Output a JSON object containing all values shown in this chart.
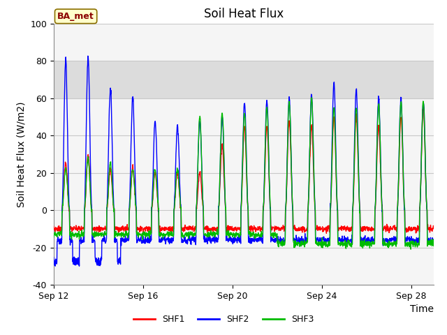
{
  "title": "Soil Heat Flux",
  "xlabel": "Time",
  "ylabel": "Soil Heat Flux (W/m2)",
  "ylim": [
    -40,
    100
  ],
  "xlim": [
    0,
    17
  ],
  "xtick_positions": [
    0,
    4,
    8,
    12,
    16
  ],
  "xtick_labels": [
    "Sep 12",
    "Sep 16",
    "Sep 20",
    "Sep 24",
    "Sep 28"
  ],
  "ytick_positions": [
    -40,
    -20,
    0,
    20,
    40,
    60,
    80,
    100
  ],
  "colors": {
    "SHF1": "#ff0000",
    "SHF2": "#0000ff",
    "SHF3": "#00bb00"
  },
  "legend_label": "BA_met",
  "background_plot": "#ffffff",
  "background_upper_band": "#e0e0e0",
  "grid_color": "#d0d0d0",
  "title_fontsize": 12,
  "label_fontsize": 10,
  "tick_fontsize": 9,
  "linewidth": 1.0
}
